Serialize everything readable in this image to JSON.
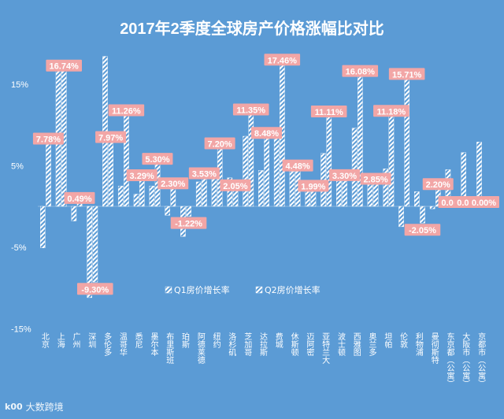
{
  "chart_data": {
    "type": "bar",
    "title": "2017年2季度全球房产价格涨幅比对比",
    "xlabel": "",
    "ylabel": "",
    "ylim": [
      -15,
      20
    ],
    "yticks": [
      {
        "value": 15,
        "label": "15%"
      },
      {
        "value": 5,
        "label": "5%"
      },
      {
        "value": -5,
        "label": "-5%"
      },
      {
        "value": -15,
        "label": "-15%"
      }
    ],
    "categories": [
      "北京",
      "上海",
      "广州",
      "深圳",
      "多伦多",
      "温哥华",
      "悉尼",
      "墨尔本",
      "布里斯班",
      "珀斯",
      "阿德莱德",
      "纽约",
      "洛杉矶",
      "芝加哥",
      "达拉斯",
      "费城",
      "休斯顿",
      "迈阿密",
      "亚特兰大",
      "波士顿",
      "西雅图",
      "奥兰多",
      "坦帕",
      "伦敦",
      "利物浦",
      "曼彻斯特",
      "东京都（公寓）",
      "大阪市（公寓）",
      "京都市（公寓）"
    ],
    "series": [
      {
        "name": "Q1房价增长率",
        "values": [
          -5.1,
          17.9,
          -1.8,
          -11.2,
          18.4,
          2.5,
          1.5,
          2.5,
          -1.1,
          -3.7,
          3.0,
          4.6,
          3.5,
          8.6,
          4.4,
          9.5,
          4.3,
          2.3,
          6.5,
          3.1,
          9.6,
          2.7,
          4.6,
          -2.5,
          1.8,
          -0.3,
          4.5,
          6.6,
          7.9
        ]
      },
      {
        "name": "Q2房价增长率",
        "values": [
          7.78,
          16.74,
          0.49,
          -9.3,
          7.97,
          11.26,
          3.29,
          5.3,
          2.3,
          -1.22,
          3.53,
          7.2,
          2.05,
          11.35,
          8.48,
          17.46,
          4.48,
          1.99,
          11.11,
          3.3,
          16.08,
          2.85,
          11.18,
          15.71,
          -2.05,
          2.2,
          0.0,
          0.0,
          0.0
        ]
      }
    ],
    "data_labels": [
      "7.78%",
      "16.74%",
      "0.49%",
      "-9.30%",
      "7.97%",
      "11.26%",
      "3.29%",
      "5.30%",
      "2.30%",
      "-1.22%",
      "3.53%",
      "7.20%",
      "2.05%",
      "11.35%",
      "8.48%",
      "17.46%",
      "4.48%",
      "1.99%",
      "11.11%",
      "3.30%",
      "16.08%",
      "2.85%",
      "11.18%",
      "15.71%",
      "-2.05%",
      "2.20%",
      "0.00%",
      "0.00%",
      "0.00%"
    ],
    "legend_position": "center",
    "grid": false,
    "colors": {
      "background": "#5b9bd5",
      "bar": "#ffffff",
      "label_bg": "#f2a6a6",
      "text": "#ffffff"
    }
  },
  "watermark": {
    "logo": "k00",
    "text": "大数跨境"
  }
}
